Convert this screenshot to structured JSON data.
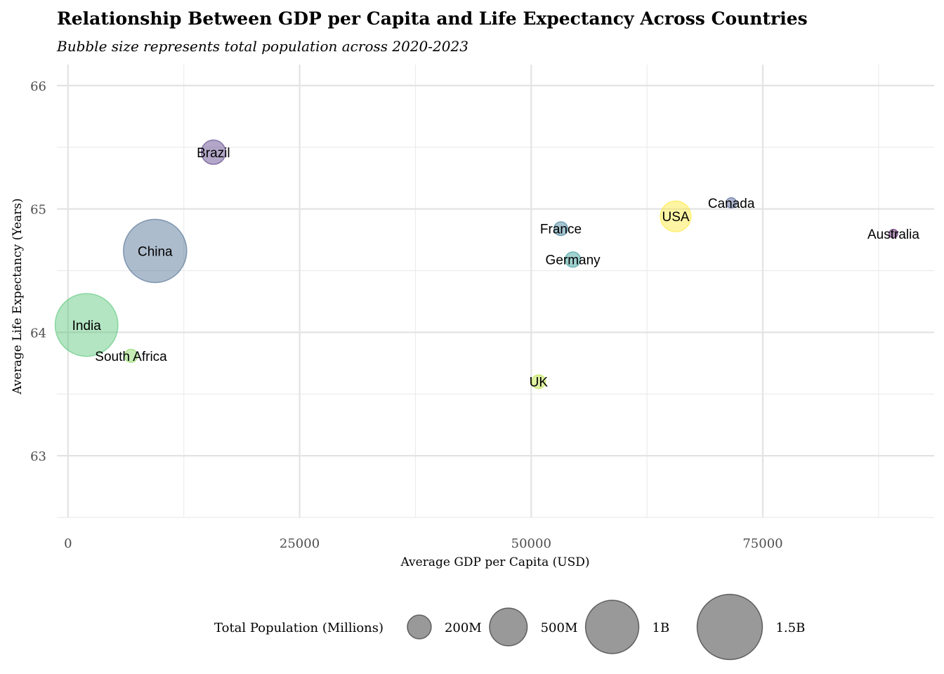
{
  "chart_data": {
    "type": "scatter",
    "title": "Relationship Between GDP per Capita and Life Expectancy Across Countries",
    "subtitle": "Bubble size represents total population across 2020-2023",
    "xlabel": "Average GDP per Capita (USD)",
    "ylabel": "Average Life Expectancy (Years)",
    "xlim": [
      -1200,
      93500
    ],
    "ylim": [
      62.5,
      66.17
    ],
    "x_ticks": [
      0,
      25000,
      50000,
      75000
    ],
    "x_tick_labels": [
      "0",
      "25000",
      "50000",
      "75000"
    ],
    "y_ticks": [
      63,
      64,
      65,
      66
    ],
    "y_tick_labels": [
      "63",
      "64",
      "65",
      "66"
    ],
    "grid": true,
    "legend_position": "bottom",
    "legend": {
      "title": "Total Population (Millions)",
      "items": [
        {
          "label": "200M",
          "value": 200
        },
        {
          "label": "500M",
          "value": 500
        },
        {
          "label": "1B",
          "value": 1000
        },
        {
          "label": "1.5B",
          "value": 1500
        }
      ]
    },
    "points": [
      {
        "label": "Brazil",
        "x": 15700,
        "y": 65.46,
        "size": 210,
        "color": "#472d7b"
      },
      {
        "label": "China",
        "x": 9400,
        "y": 64.66,
        "size": 1410,
        "color": "#3b5f86"
      },
      {
        "label": "India",
        "x": 2000,
        "y": 64.06,
        "size": 1390,
        "color": "#4ac16d"
      },
      {
        "label": "South Africa",
        "x": 6800,
        "y": 63.81,
        "size": 60,
        "color": "#7ad151"
      },
      {
        "label": "UK",
        "x": 50800,
        "y": 63.6,
        "size": 67,
        "color": "#b5de2b"
      },
      {
        "label": "France",
        "x": 53200,
        "y": 64.84,
        "size": 67,
        "color": "#2c728e"
      },
      {
        "label": "Germany",
        "x": 54500,
        "y": 64.59,
        "size": 83,
        "color": "#21918c"
      },
      {
        "label": "USA",
        "x": 65600,
        "y": 64.94,
        "size": 331,
        "color": "#fde725"
      },
      {
        "label": "Canada",
        "x": 71600,
        "y": 65.05,
        "size": 38,
        "color": "#3b528b"
      },
      {
        "label": "Australia",
        "x": 89100,
        "y": 64.8,
        "size": 26,
        "color": "#440154"
      }
    ]
  }
}
